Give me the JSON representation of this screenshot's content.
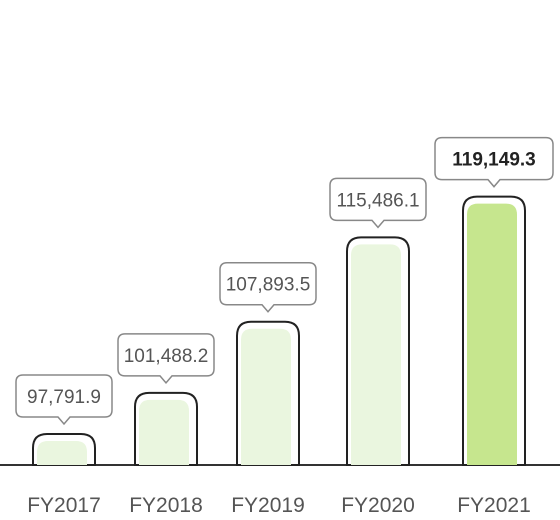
{
  "chart_data": {
    "type": "bar",
    "categories": [
      "FY2017",
      "FY2018",
      "FY2019",
      "FY2020",
      "FY2021"
    ],
    "values": [
      97791.9,
      101488.2,
      107893.5,
      115486.1,
      119149.3
    ],
    "value_labels": [
      "97,791.9",
      "101,488.2",
      "107,893.5",
      "115,486.1",
      "119,149.3"
    ],
    "highlight_index": 4,
    "title": "",
    "xlabel": "",
    "ylabel": "",
    "ylim": [
      95000,
      120200
    ],
    "grid": false,
    "legend": "none"
  },
  "colors": {
    "bar_fill": "#eaf6df",
    "bar_highlight_fill": "#c6e68e",
    "bar_stroke": "#222222",
    "label_box_stroke": "#888888",
    "axis": "#333333"
  }
}
